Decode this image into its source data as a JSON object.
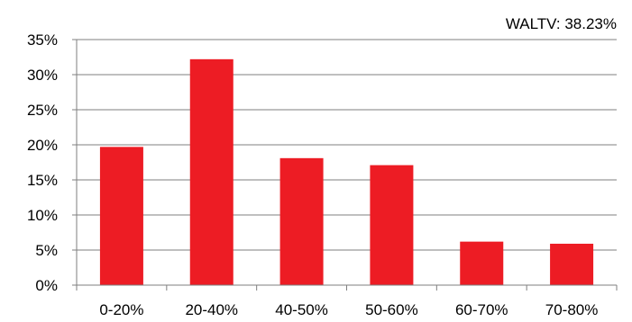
{
  "chart_data": {
    "type": "bar",
    "categories": [
      "0-20%",
      "20-40%",
      "40-50%",
      "50-60%",
      "60-70%",
      "70-80%"
    ],
    "values": [
      19.7,
      32.2,
      18.1,
      17.1,
      6.2,
      5.9
    ],
    "ylim": [
      0,
      35
    ],
    "y_ticks": [
      "0%",
      "5%",
      "10%",
      "15%",
      "20%",
      "25%",
      "30%",
      "35%"
    ],
    "annotation": "WALTV: 38.23%",
    "grid": true,
    "legend": "none",
    "bar_color": "#ED1C24",
    "grid_color": "#7F7F7F"
  }
}
